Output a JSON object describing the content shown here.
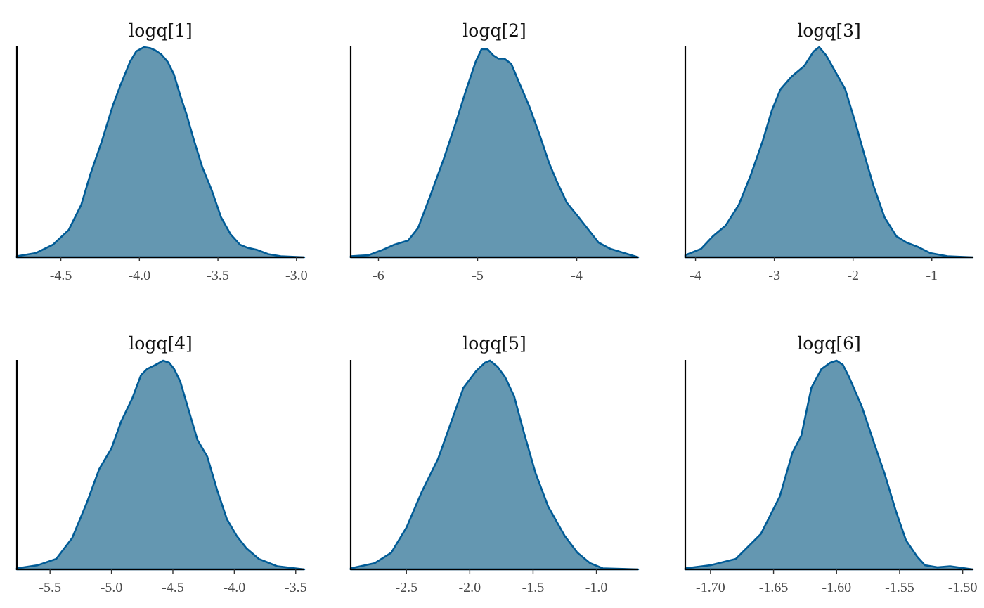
{
  "colors": {
    "fill": "#6497b1",
    "stroke": "#005b96",
    "axis": "#000000",
    "text": "#4a4a4a"
  },
  "chart_data": [
    {
      "type": "area",
      "title": "logq[1]",
      "xlabel": "",
      "ylabel": "",
      "xlim": [
        -4.78,
        -2.95
      ],
      "ylim": [
        0,
        1
      ],
      "y_axis_ticks": false,
      "grid": false,
      "xticks": [
        -4.5,
        -4.0,
        -3.5,
        -3.0
      ],
      "xtick_labels": [
        "-4.5",
        "-4.0",
        "-3.5",
        "-3.0"
      ],
      "series": [
        {
          "x": [
            -4.78,
            -4.66,
            -4.55,
            -4.45,
            -4.37,
            -4.31,
            -4.24,
            -4.17,
            -4.12,
            -4.06,
            -4.02,
            -3.97,
            -3.93,
            -3.9,
            -3.86,
            -3.82,
            -3.78,
            -3.74,
            -3.7,
            -3.65,
            -3.6,
            -3.54,
            -3.48,
            -3.42,
            -3.36,
            -3.31,
            -3.25,
            -3.18,
            -3.1,
            -2.95
          ],
          "y": [
            0.005,
            0.02,
            0.06,
            0.13,
            0.25,
            0.4,
            0.55,
            0.72,
            0.82,
            0.93,
            0.98,
            1.0,
            0.995,
            0.985,
            0.965,
            0.93,
            0.87,
            0.77,
            0.68,
            0.55,
            0.43,
            0.32,
            0.19,
            0.11,
            0.06,
            0.045,
            0.035,
            0.015,
            0.005,
            0.0
          ]
        }
      ]
    },
    {
      "type": "area",
      "title": "logq[2]",
      "xlabel": "",
      "ylabel": "",
      "xlim": [
        -6.28,
        -3.38
      ],
      "ylim": [
        0,
        1
      ],
      "y_axis_ticks": false,
      "grid": false,
      "xticks": [
        -6,
        -5,
        -4
      ],
      "xtick_labels": [
        "-6",
        "-5",
        "-4"
      ],
      "series": [
        {
          "x": [
            -6.28,
            -6.1,
            -5.96,
            -5.84,
            -5.7,
            -5.6,
            -5.48,
            -5.34,
            -5.22,
            -5.12,
            -5.02,
            -4.96,
            -4.9,
            -4.84,
            -4.79,
            -4.73,
            -4.66,
            -4.58,
            -4.48,
            -4.38,
            -4.28,
            -4.2,
            -4.1,
            -3.98,
            -3.88,
            -3.78,
            -3.66,
            -3.38
          ],
          "y": [
            0.005,
            0.01,
            0.035,
            0.06,
            0.08,
            0.14,
            0.29,
            0.47,
            0.64,
            0.79,
            0.93,
            0.99,
            0.99,
            0.96,
            0.945,
            0.945,
            0.92,
            0.83,
            0.72,
            0.59,
            0.45,
            0.36,
            0.26,
            0.19,
            0.13,
            0.07,
            0.04,
            0.0
          ]
        }
      ]
    },
    {
      "type": "area",
      "title": "logq[3]",
      "xlabel": "",
      "ylabel": "",
      "xlim": [
        -4.13,
        -0.48
      ],
      "ylim": [
        0,
        1
      ],
      "y_axis_ticks": false,
      "grid": false,
      "xticks": [
        -4,
        -3,
        -2,
        -1
      ],
      "xtick_labels": [
        "-4",
        "-3",
        "-2",
        "-1"
      ],
      "series": [
        {
          "x": [
            -4.13,
            -3.93,
            -3.78,
            -3.62,
            -3.45,
            -3.3,
            -3.15,
            -3.03,
            -2.92,
            -2.78,
            -2.62,
            -2.5,
            -2.43,
            -2.34,
            -2.22,
            -2.1,
            -1.97,
            -1.85,
            -1.74,
            -1.6,
            -1.45,
            -1.32,
            -1.18,
            -1.02,
            -0.8,
            -0.48
          ],
          "y": [
            0.01,
            0.04,
            0.1,
            0.15,
            0.25,
            0.39,
            0.55,
            0.7,
            0.8,
            0.86,
            0.91,
            0.98,
            1.0,
            0.96,
            0.88,
            0.8,
            0.64,
            0.48,
            0.34,
            0.19,
            0.1,
            0.07,
            0.05,
            0.02,
            0.005,
            0.0
          ]
        }
      ]
    },
    {
      "type": "area",
      "title": "logq[4]",
      "xlabel": "",
      "ylabel": "",
      "xlim": [
        -5.77,
        -3.43
      ],
      "ylim": [
        0,
        1
      ],
      "y_axis_ticks": false,
      "grid": false,
      "xticks": [
        -5.5,
        -5.0,
        -4.5,
        -4.0,
        -3.5
      ],
      "xtick_labels": [
        "-5.5",
        "-5.0",
        "-4.5",
        "-4.0",
        "-3.5"
      ],
      "series": [
        {
          "x": [
            -5.77,
            -5.6,
            -5.45,
            -5.32,
            -5.2,
            -5.1,
            -5.0,
            -4.92,
            -4.83,
            -4.76,
            -4.71,
            -4.64,
            -4.58,
            -4.53,
            -4.49,
            -4.44,
            -4.38,
            -4.3,
            -4.22,
            -4.14,
            -4.06,
            -3.98,
            -3.9,
            -3.8,
            -3.65,
            -3.43
          ],
          "y": [
            0.005,
            0.02,
            0.05,
            0.15,
            0.32,
            0.48,
            0.58,
            0.71,
            0.82,
            0.93,
            0.96,
            0.98,
            1.0,
            0.99,
            0.96,
            0.9,
            0.78,
            0.62,
            0.54,
            0.38,
            0.24,
            0.16,
            0.1,
            0.05,
            0.015,
            0.0
          ]
        }
      ]
    },
    {
      "type": "area",
      "title": "logq[5]",
      "xlabel": "",
      "ylabel": "",
      "xlim": [
        -2.94,
        -0.67
      ],
      "ylim": [
        0,
        1
      ],
      "y_axis_ticks": false,
      "grid": false,
      "xticks": [
        -2.5,
        -2.0,
        -1.5,
        -1.0
      ],
      "xtick_labels": [
        "-2.5",
        "-2.0",
        "-1.5",
        "-1.0"
      ],
      "series": [
        {
          "x": [
            -2.94,
            -2.75,
            -2.62,
            -2.5,
            -2.38,
            -2.25,
            -2.15,
            -2.05,
            -1.95,
            -1.88,
            -1.84,
            -1.78,
            -1.72,
            -1.65,
            -1.57,
            -1.48,
            -1.38,
            -1.25,
            -1.15,
            -1.05,
            -0.95,
            -0.67
          ],
          "y": [
            0.005,
            0.03,
            0.08,
            0.2,
            0.37,
            0.53,
            0.7,
            0.87,
            0.95,
            0.99,
            1.0,
            0.97,
            0.92,
            0.83,
            0.65,
            0.46,
            0.3,
            0.16,
            0.08,
            0.03,
            0.005,
            0.0
          ]
        }
      ]
    },
    {
      "type": "area",
      "title": "logq[6]",
      "xlabel": "",
      "ylabel": "",
      "xlim": [
        -1.72,
        -1.492
      ],
      "ylim": [
        0,
        1
      ],
      "y_axis_ticks": false,
      "grid": false,
      "xticks": [
        -1.7,
        -1.65,
        -1.6,
        -1.55,
        -1.5
      ],
      "xtick_labels": [
        "-1.70",
        "-1.65",
        "-1.60",
        "-1.55",
        "-1.50"
      ],
      "series": [
        {
          "x": [
            -1.72,
            -1.7,
            -1.68,
            -1.66,
            -1.645,
            -1.635,
            -1.628,
            -1.62,
            -1.612,
            -1.605,
            -1.6,
            -1.595,
            -1.59,
            -1.58,
            -1.57,
            -1.562,
            -1.553,
            -1.545,
            -1.536,
            -1.53,
            -1.52,
            -1.51,
            -1.492
          ],
          "y": [
            0.005,
            0.02,
            0.05,
            0.17,
            0.35,
            0.56,
            0.64,
            0.87,
            0.96,
            0.99,
            1.0,
            0.98,
            0.92,
            0.78,
            0.6,
            0.46,
            0.28,
            0.14,
            0.06,
            0.02,
            0.01,
            0.015,
            0.0
          ]
        }
      ]
    }
  ]
}
